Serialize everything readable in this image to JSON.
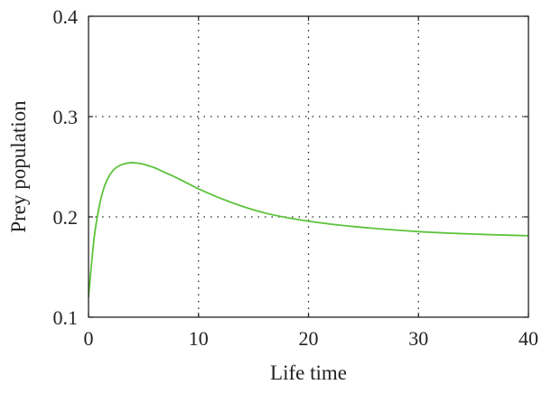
{
  "chart_data": {
    "type": "line",
    "xlabel": "Life time",
    "ylabel": "Prey population",
    "xlim": [
      0,
      40
    ],
    "ylim": [
      0.1,
      0.4
    ],
    "xticks": [
      "0",
      "10",
      "20",
      "30",
      "40"
    ],
    "yticks": [
      "0.1",
      "0.2",
      "0.3",
      "0.4"
    ],
    "xtick_values": [
      0,
      10,
      20,
      30,
      40
    ],
    "ytick_values": [
      0.1,
      0.2,
      0.3,
      0.4
    ],
    "grid": true,
    "grid_style": "dotted",
    "series": [
      {
        "color": "#5cc33a",
        "x": [
          0,
          0.5,
          1,
          1.5,
          2,
          2.5,
          3,
          3.5,
          4,
          4.5,
          5,
          6,
          7,
          8,
          9,
          10,
          12,
          14,
          16,
          18,
          20,
          22,
          24,
          26,
          28,
          30,
          32,
          34,
          36,
          38,
          40
        ],
        "y": [
          0.12,
          0.178,
          0.212,
          0.232,
          0.243,
          0.249,
          0.252,
          0.2535,
          0.254,
          0.2535,
          0.2525,
          0.249,
          0.244,
          0.239,
          0.2335,
          0.228,
          0.2185,
          0.2105,
          0.204,
          0.1993,
          0.1957,
          0.1928,
          0.1905,
          0.1885,
          0.1868,
          0.1853,
          0.1842,
          0.1833,
          0.1825,
          0.1818,
          0.1812
        ]
      }
    ]
  }
}
